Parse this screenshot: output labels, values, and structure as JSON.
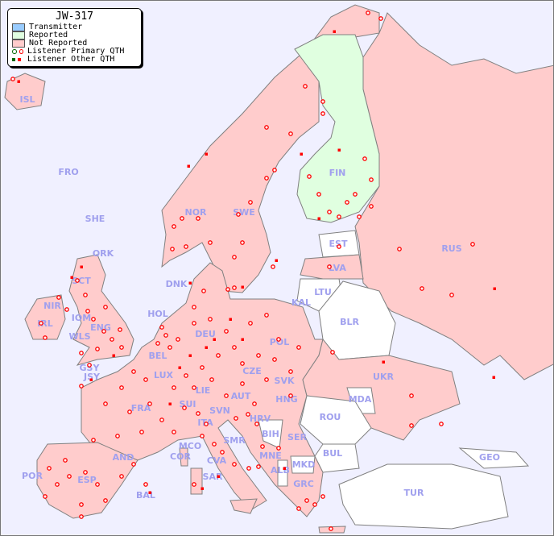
{
  "title": "JW-317",
  "legend": {
    "items": [
      {
        "label": "Transmitter",
        "color": "#99ccff"
      },
      {
        "label": "Reported",
        "color": "#e0ffe0"
      },
      {
        "label": "Not Reported",
        "color": "#ffcccc"
      },
      {
        "label": "Listener Primary QTH",
        "colors": [
          "#006600",
          "#ff0000"
        ]
      },
      {
        "label": "Listener Other QTH",
        "colors": [
          "#006600",
          "#ff0000"
        ]
      }
    ]
  },
  "colors": {
    "sea": "#f0f0ff",
    "not_reported": "#ffcccc",
    "reported": "#e0ffe0",
    "no_data": "#ffffff",
    "border": "#808080",
    "label": "#a0a0ee",
    "marker": "#ff0000"
  },
  "countries": [
    "ISL",
    "FRO",
    "SHE",
    "ORK",
    "NOR",
    "SWE",
    "FIN",
    "EST",
    "LVA",
    "LTU",
    "RUS",
    "DNK",
    "SCT",
    "NIR",
    "IRL",
    "IOM",
    "WLS",
    "ENG",
    "HOL",
    "BEL",
    "DEU",
    "KAL",
    "POL",
    "BLR",
    "GSY",
    "JSY",
    "LUX",
    "CZE",
    "SVK",
    "UKR",
    "FRA",
    "SUI",
    "LIE",
    "AUT",
    "HNG",
    "MDA",
    "SVN",
    "HRV",
    "ITA",
    "ROU",
    "BIH",
    "SER",
    "SMR",
    "MCO",
    "COR",
    "CVA",
    "MNE",
    "BUL",
    "AND",
    "ALB",
    "MKD",
    "GRC",
    "POR",
    "ESP",
    "BAL",
    "SAR",
    "TUR",
    "GEO"
  ]
}
